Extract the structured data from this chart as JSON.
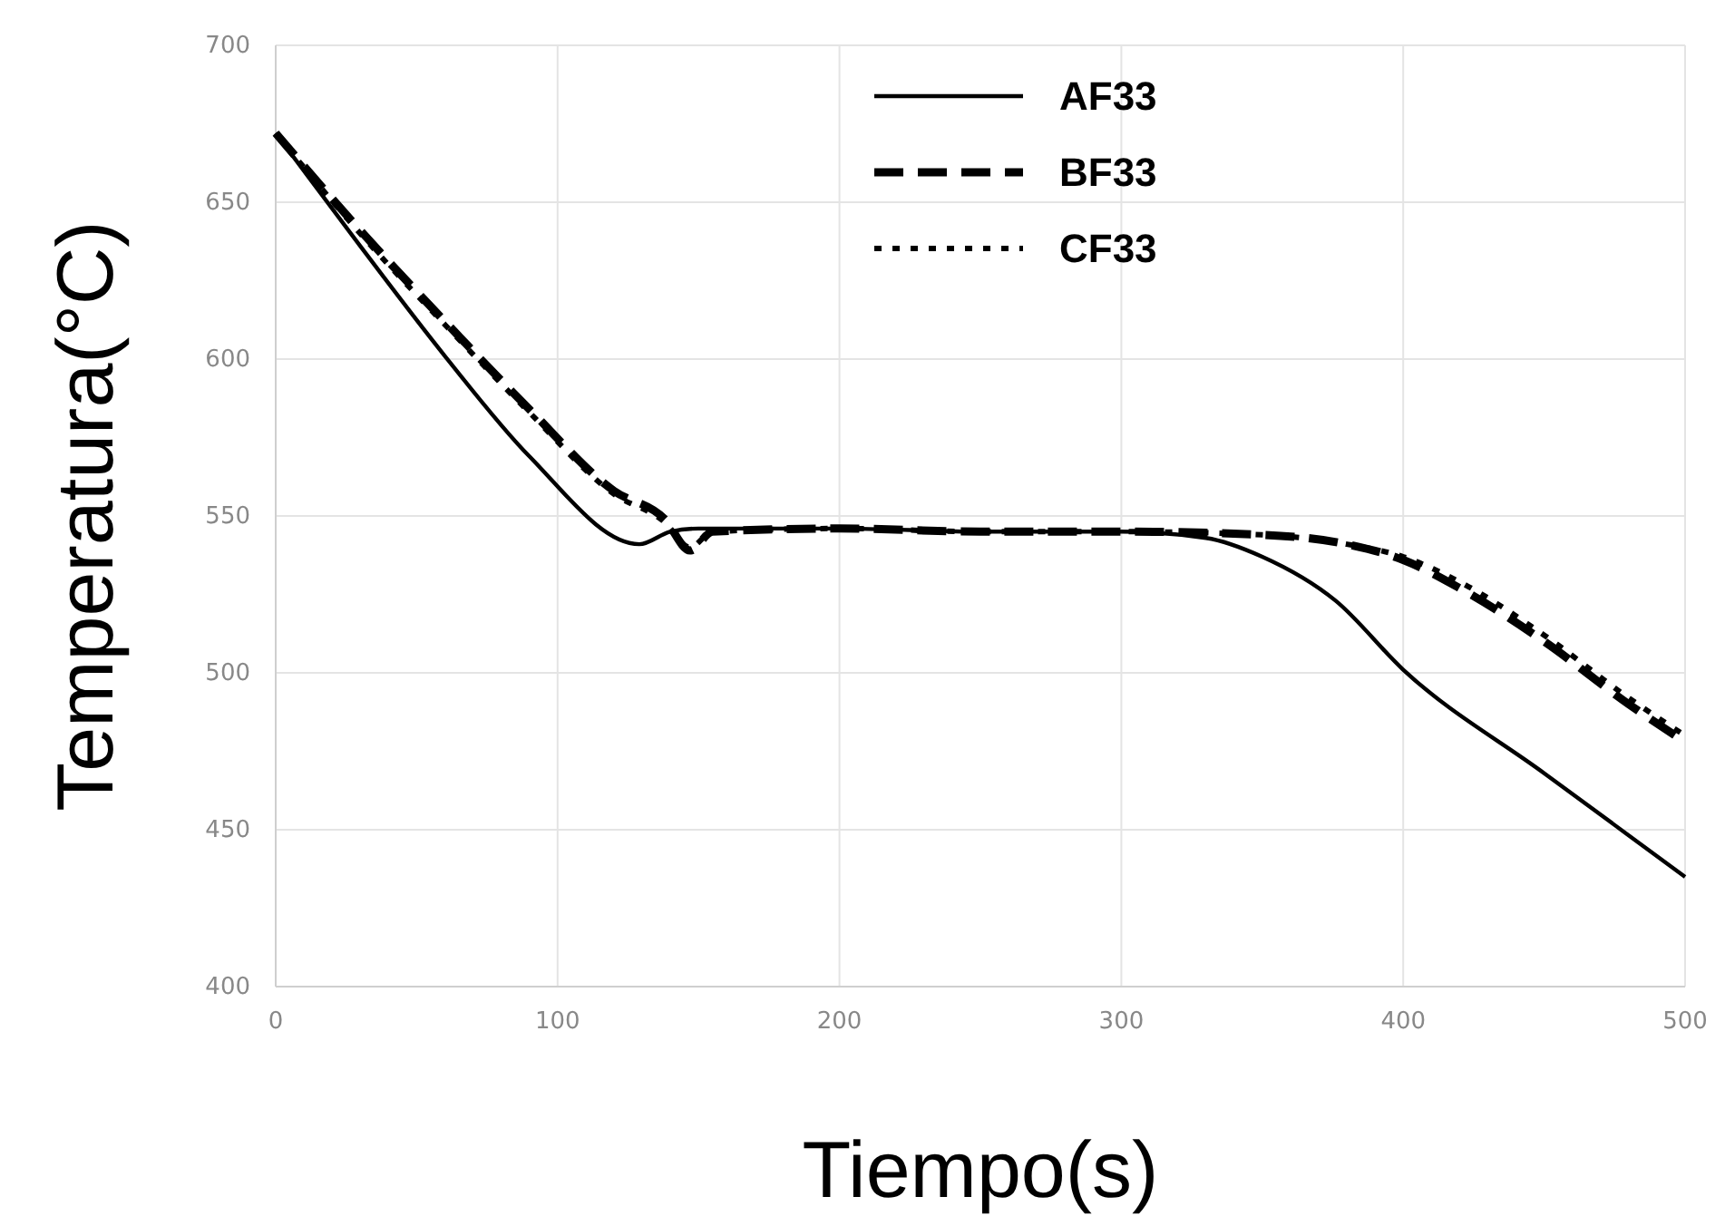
{
  "chart_data": {
    "type": "line",
    "xlabel": "Tiempo(s)",
    "ylabel": "Temperatura(°C)",
    "xlim": [
      0,
      500
    ],
    "xticks": [
      0,
      100,
      200,
      300,
      400,
      500
    ],
    "ylim": [
      400,
      700
    ],
    "yticks": [
      400,
      450,
      500,
      550,
      600,
      650,
      700
    ],
    "grid": true,
    "legend": "top",
    "series": [
      {
        "name": "AF33",
        "color": "#000000",
        "line_style": "solid",
        "x": [
          0,
          30,
          60,
          90,
          129,
          140,
          150,
          200,
          250,
          300,
          330,
          350,
          376,
          400,
          450,
          500
        ],
        "values": [
          672,
          636,
          601,
          569,
          541,
          545,
          546,
          546,
          545,
          545,
          543,
          537,
          523,
          501,
          468,
          435
        ]
      },
      {
        "name": "BF33",
        "color": "#000000",
        "line_style": "dashed",
        "x": [
          0,
          30,
          60,
          90,
          120,
          138,
          147,
          155,
          200,
          250,
          300,
          350,
          380,
          400,
          420,
          450,
          480,
          500
        ],
        "values": [
          672,
          641,
          612,
          584,
          558,
          549,
          539,
          545,
          546,
          545,
          545,
          544,
          541,
          536,
          527,
          510,
          490,
          478
        ]
      },
      {
        "name": "CF33",
        "color": "#000000",
        "line_style": "dotted",
        "x": [
          0,
          30,
          60,
          90,
          120,
          138,
          147,
          155,
          200,
          250,
          300,
          350,
          380,
          400,
          420,
          450,
          480,
          500
        ],
        "values": [
          672,
          640,
          611,
          583,
          557,
          548,
          540,
          545,
          546,
          545,
          545,
          544,
          541,
          537,
          529,
          512,
          492,
          480
        ]
      }
    ]
  }
}
